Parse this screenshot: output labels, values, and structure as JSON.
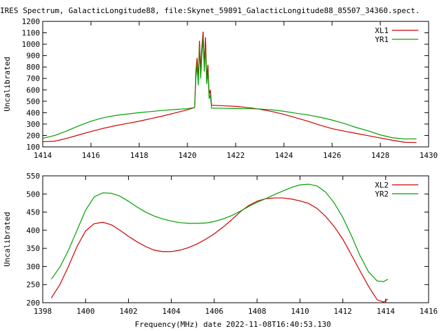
{
  "page_title": "IRES Spectrum, GalacticLongitude88, file:Skynet_59891_GalacticLongitude88_85507_34360.spect.",
  "footer_label": "Frequency(MHz) date 2022-11-08T16:40:53.130",
  "colors": {
    "red": "#cc0000",
    "green": "#00a000",
    "axis": "#000000"
  },
  "chart_data": [
    {
      "type": "line",
      "ylabel": "Uncalibrated",
      "xlim": [
        1414,
        1430
      ],
      "ylim": [
        100,
        1200
      ],
      "xticks": [
        1414,
        1416,
        1418,
        1420,
        1422,
        1424,
        1426,
        1428,
        1430
      ],
      "yticks": [
        100,
        200,
        300,
        400,
        500,
        600,
        700,
        800,
        900,
        1000,
        1100,
        1200
      ],
      "legend": "top-right",
      "series": [
        {
          "name": "XL1",
          "color": "#cc0000",
          "points": [
            [
              1414.0,
              145
            ],
            [
              1414.5,
              150
            ],
            [
              1415.0,
              175
            ],
            [
              1415.5,
              205
            ],
            [
              1416.0,
              235
            ],
            [
              1416.5,
              262
            ],
            [
              1417.0,
              285
            ],
            [
              1417.5,
              305
            ],
            [
              1418.0,
              325
            ],
            [
              1418.5,
              348
            ],
            [
              1419.0,
              372
            ],
            [
              1419.5,
              398
            ],
            [
              1420.0,
              425
            ],
            [
              1420.3,
              445
            ],
            [
              1420.35,
              760
            ],
            [
              1420.4,
              880
            ],
            [
              1420.45,
              700
            ],
            [
              1420.5,
              1030
            ],
            [
              1420.55,
              780
            ],
            [
              1420.6,
              980
            ],
            [
              1420.65,
              1110
            ],
            [
              1420.7,
              820
            ],
            [
              1420.75,
              1060
            ],
            [
              1420.8,
              700
            ],
            [
              1420.85,
              820
            ],
            [
              1420.9,
              560
            ],
            [
              1420.95,
              600
            ],
            [
              1421.0,
              465
            ],
            [
              1421.5,
              460
            ],
            [
              1422.0,
              455
            ],
            [
              1422.5,
              445
            ],
            [
              1423.0,
              430
            ],
            [
              1423.5,
              410
            ],
            [
              1424.0,
              385
            ],
            [
              1424.5,
              355
            ],
            [
              1425.0,
              325
            ],
            [
              1425.5,
              290
            ],
            [
              1426.0,
              260
            ],
            [
              1426.5,
              238
            ],
            [
              1427.0,
              218
            ],
            [
              1427.5,
              198
            ],
            [
              1428.0,
              178
            ],
            [
              1428.5,
              158
            ],
            [
              1429.0,
              140
            ],
            [
              1429.5,
              138
            ]
          ]
        },
        {
          "name": "YR1",
          "color": "#00a000",
          "points": [
            [
              1414.0,
              175
            ],
            [
              1414.5,
              200
            ],
            [
              1415.0,
              240
            ],
            [
              1415.5,
              285
            ],
            [
              1416.0,
              325
            ],
            [
              1416.5,
              355
            ],
            [
              1417.0,
              375
            ],
            [
              1417.5,
              388
            ],
            [
              1418.0,
              400
            ],
            [
              1418.5,
              410
            ],
            [
              1419.0,
              420
            ],
            [
              1419.5,
              428
            ],
            [
              1420.0,
              435
            ],
            [
              1420.3,
              445
            ],
            [
              1420.35,
              700
            ],
            [
              1420.4,
              820
            ],
            [
              1420.45,
              640
            ],
            [
              1420.5,
              980
            ],
            [
              1420.55,
              700
            ],
            [
              1420.6,
              900
            ],
            [
              1420.65,
              1060
            ],
            [
              1420.7,
              760
            ],
            [
              1420.75,
              980
            ],
            [
              1420.8,
              650
            ],
            [
              1420.85,
              760
            ],
            [
              1420.9,
              520
            ],
            [
              1420.95,
              560
            ],
            [
              1421.0,
              440
            ],
            [
              1421.5,
              438
            ],
            [
              1422.0,
              436
            ],
            [
              1422.5,
              435
            ],
            [
              1423.0,
              432
            ],
            [
              1423.5,
              425
            ],
            [
              1424.0,
              412
            ],
            [
              1424.5,
              395
            ],
            [
              1425.0,
              380
            ],
            [
              1425.5,
              360
            ],
            [
              1426.0,
              335
            ],
            [
              1426.5,
              305
            ],
            [
              1427.0,
              270
            ],
            [
              1427.5,
              240
            ],
            [
              1428.0,
              205
            ],
            [
              1428.5,
              180
            ],
            [
              1429.0,
              170
            ],
            [
              1429.5,
              170
            ]
          ]
        }
      ]
    },
    {
      "type": "line",
      "ylabel": "Uncalibrated",
      "xlim": [
        1398,
        1416
      ],
      "ylim": [
        200,
        550
      ],
      "xticks": [
        1398,
        1400,
        1402,
        1404,
        1406,
        1408,
        1410,
        1412,
        1414,
        1416
      ],
      "yticks": [
        200,
        250,
        300,
        350,
        400,
        450,
        500,
        550
      ],
      "legend": "top-right",
      "series": [
        {
          "name": "XL2",
          "color": "#cc0000",
          "points": [
            [
              1398.4,
              213
            ],
            [
              1398.8,
              250
            ],
            [
              1399.2,
              300
            ],
            [
              1399.6,
              355
            ],
            [
              1400.0,
              398
            ],
            [
              1400.4,
              418
            ],
            [
              1400.8,
              422
            ],
            [
              1401.2,
              415
            ],
            [
              1401.6,
              400
            ],
            [
              1402.0,
              383
            ],
            [
              1402.4,
              368
            ],
            [
              1402.8,
              355
            ],
            [
              1403.2,
              345
            ],
            [
              1403.6,
              341
            ],
            [
              1404.0,
              341
            ],
            [
              1404.4,
              345
            ],
            [
              1404.8,
              352
            ],
            [
              1405.2,
              362
            ],
            [
              1405.6,
              375
            ],
            [
              1406.0,
              390
            ],
            [
              1406.4,
              408
            ],
            [
              1406.8,
              428
            ],
            [
              1407.2,
              450
            ],
            [
              1407.6,
              468
            ],
            [
              1408.0,
              480
            ],
            [
              1408.4,
              487
            ],
            [
              1408.8,
              489
            ],
            [
              1409.2,
              489
            ],
            [
              1409.6,
              486
            ],
            [
              1410.0,
              481
            ],
            [
              1410.4,
              474
            ],
            [
              1410.8,
              460
            ],
            [
              1411.2,
              438
            ],
            [
              1411.6,
              410
            ],
            [
              1412.0,
              375
            ],
            [
              1412.4,
              332
            ],
            [
              1412.8,
              288
            ],
            [
              1413.2,
              245
            ],
            [
              1413.6,
              208
            ],
            [
              1413.9,
              202
            ],
            [
              1414.1,
              210
            ]
          ]
        },
        {
          "name": "YR2",
          "color": "#00a000",
          "points": [
            [
              1398.4,
              265
            ],
            [
              1398.8,
              298
            ],
            [
              1399.2,
              345
            ],
            [
              1399.6,
              400
            ],
            [
              1400.0,
              455
            ],
            [
              1400.4,
              492
            ],
            [
              1400.8,
              503
            ],
            [
              1401.2,
              502
            ],
            [
              1401.6,
              494
            ],
            [
              1402.0,
              480
            ],
            [
              1402.4,
              464
            ],
            [
              1402.8,
              450
            ],
            [
              1403.2,
              439
            ],
            [
              1403.6,
              431
            ],
            [
              1404.0,
              425
            ],
            [
              1404.4,
              421
            ],
            [
              1404.8,
              419
            ],
            [
              1405.2,
              419
            ],
            [
              1405.6,
              420
            ],
            [
              1406.0,
              424
            ],
            [
              1406.4,
              431
            ],
            [
              1406.8,
              440
            ],
            [
              1407.2,
              452
            ],
            [
              1407.6,
              465
            ],
            [
              1408.0,
              477
            ],
            [
              1408.4,
              487
            ],
            [
              1408.8,
              498
            ],
            [
              1409.2,
              508
            ],
            [
              1409.6,
              518
            ],
            [
              1410.0,
              525
            ],
            [
              1410.4,
              527
            ],
            [
              1410.8,
              522
            ],
            [
              1411.2,
              505
            ],
            [
              1411.6,
              475
            ],
            [
              1412.0,
              435
            ],
            [
              1412.4,
              385
            ],
            [
              1412.8,
              330
            ],
            [
              1413.2,
              285
            ],
            [
              1413.6,
              260
            ],
            [
              1413.9,
              258
            ],
            [
              1414.1,
              265
            ]
          ]
        }
      ]
    }
  ]
}
